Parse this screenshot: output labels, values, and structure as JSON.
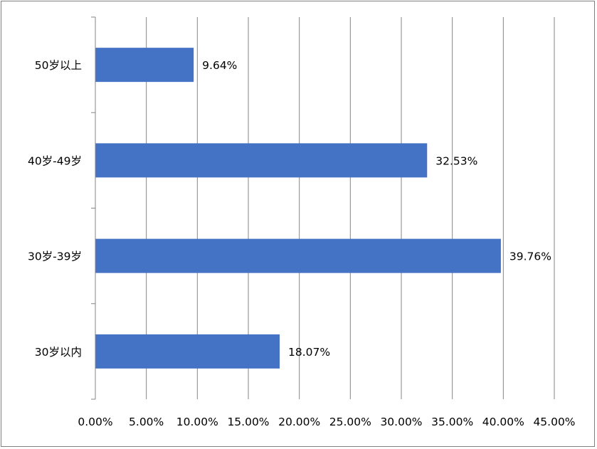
{
  "chart_data": {
    "type": "bar",
    "orientation": "horizontal",
    "categories": [
      "30岁以内",
      "30岁-39岁",
      "40岁-49岁",
      "50岁以上"
    ],
    "values": [
      18.07,
      39.76,
      32.53,
      9.64
    ],
    "data_labels": [
      "18.07%",
      "39.76%",
      "32.53%",
      "9.64%"
    ],
    "x_ticks": [
      "0.00%",
      "5.00%",
      "10.00%",
      "15.00%",
      "20.00%",
      "25.00%",
      "30.00%",
      "35.00%",
      "40.00%",
      "45.00%"
    ],
    "xlim": [
      0,
      45
    ],
    "grid": "vertical",
    "legend": "none",
    "bar_color": "#4472C4",
    "title": "",
    "xlabel": "",
    "ylabel": ""
  }
}
